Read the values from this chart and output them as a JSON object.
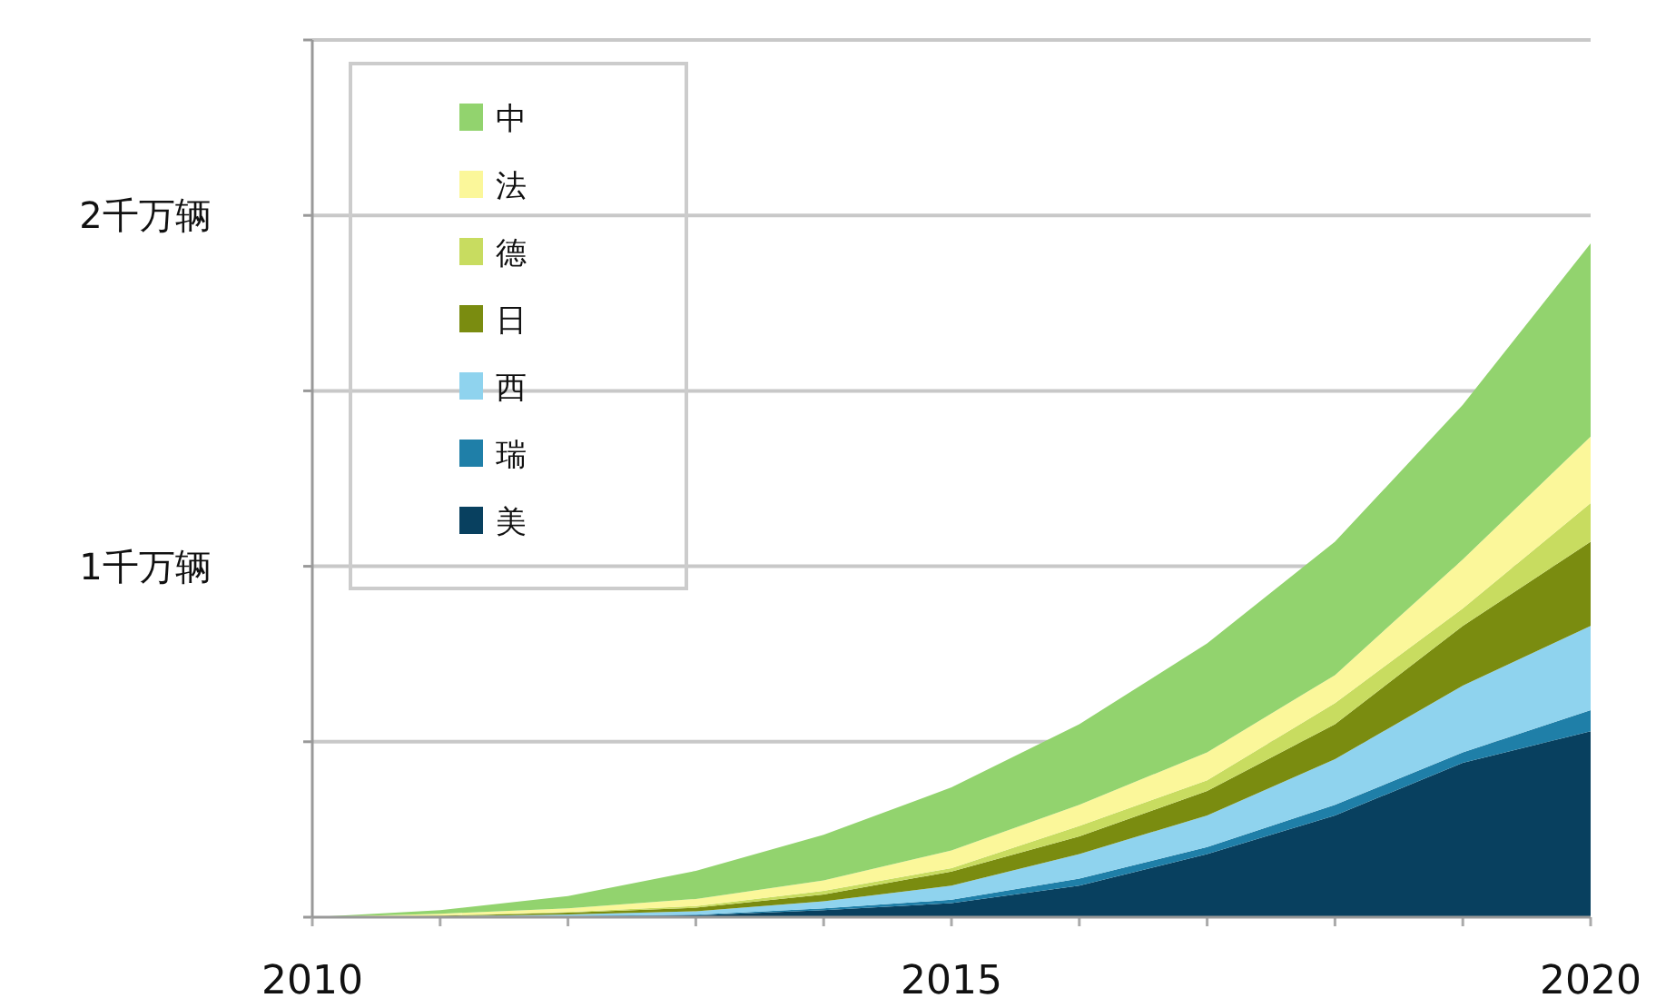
{
  "chart_data": {
    "type": "area",
    "stacked": true,
    "x": [
      2010,
      2011,
      2012,
      2013,
      2014,
      2015,
      2016,
      2017,
      2018,
      2019,
      2020
    ],
    "series": [
      {
        "name": "美",
        "color": "#08405f",
        "values": [
          0,
          0,
          0.002,
          0.005,
          0.02,
          0.04,
          0.09,
          0.18,
          0.29,
          0.44,
          0.53
        ]
      },
      {
        "name": "瑞",
        "color": "#1f7fa8",
        "values": [
          0,
          0,
          0.001,
          0.002,
          0.005,
          0.01,
          0.02,
          0.02,
          0.03,
          0.03,
          0.06
        ]
      },
      {
        "name": "西",
        "color": "#8fd3ee",
        "values": [
          0,
          0.002,
          0.005,
          0.01,
          0.02,
          0.04,
          0.07,
          0.09,
          0.13,
          0.19,
          0.24
        ]
      },
      {
        "name": "日",
        "color": "#7a8c10",
        "values": [
          0,
          0.002,
          0.005,
          0.01,
          0.02,
          0.04,
          0.05,
          0.07,
          0.1,
          0.17,
          0.24
        ]
      },
      {
        "name": "德",
        "color": "#c8dc60",
        "values": [
          0,
          0.001,
          0.002,
          0.005,
          0.01,
          0.01,
          0.03,
          0.03,
          0.06,
          0.05,
          0.11
        ]
      },
      {
        "name": "法",
        "color": "#fbf79a",
        "values": [
          0,
          0.005,
          0.01,
          0.02,
          0.03,
          0.05,
          0.06,
          0.08,
          0.08,
          0.14,
          0.19
        ]
      },
      {
        "name": "中",
        "color": "#92d36e",
        "values": [
          0,
          0.01,
          0.035,
          0.08,
          0.13,
          0.18,
          0.23,
          0.31,
          0.38,
          0.44,
          0.55
        ]
      }
    ],
    "xlim": [
      2010,
      2020
    ],
    "xticks": [
      2010,
      {
        "value": 2011,
        "label": null
      },
      {
        "value": 2012,
        "label": null
      },
      {
        "value": 2013,
        "label": null
      },
      {
        "value": 2014,
        "label": null
      },
      2015,
      {
        "value": 2016,
        "label": null
      },
      {
        "value": 2017,
        "label": null
      },
      {
        "value": 2018,
        "label": null
      },
      {
        "value": 2019,
        "label": null
      },
      2020
    ],
    "ylim": [
      0,
      2.5
    ],
    "yticks": [
      {
        "value": 0,
        "label": null
      },
      {
        "value": 0.5,
        "label": null
      },
      {
        "value": 1,
        "label": "1千万辆"
      },
      {
        "value": 1.5,
        "label": null
      },
      {
        "value": 2,
        "label": "2千万辆"
      },
      {
        "value": 2.5,
        "label": null
      }
    ],
    "grid": "y",
    "legend": "top left"
  }
}
